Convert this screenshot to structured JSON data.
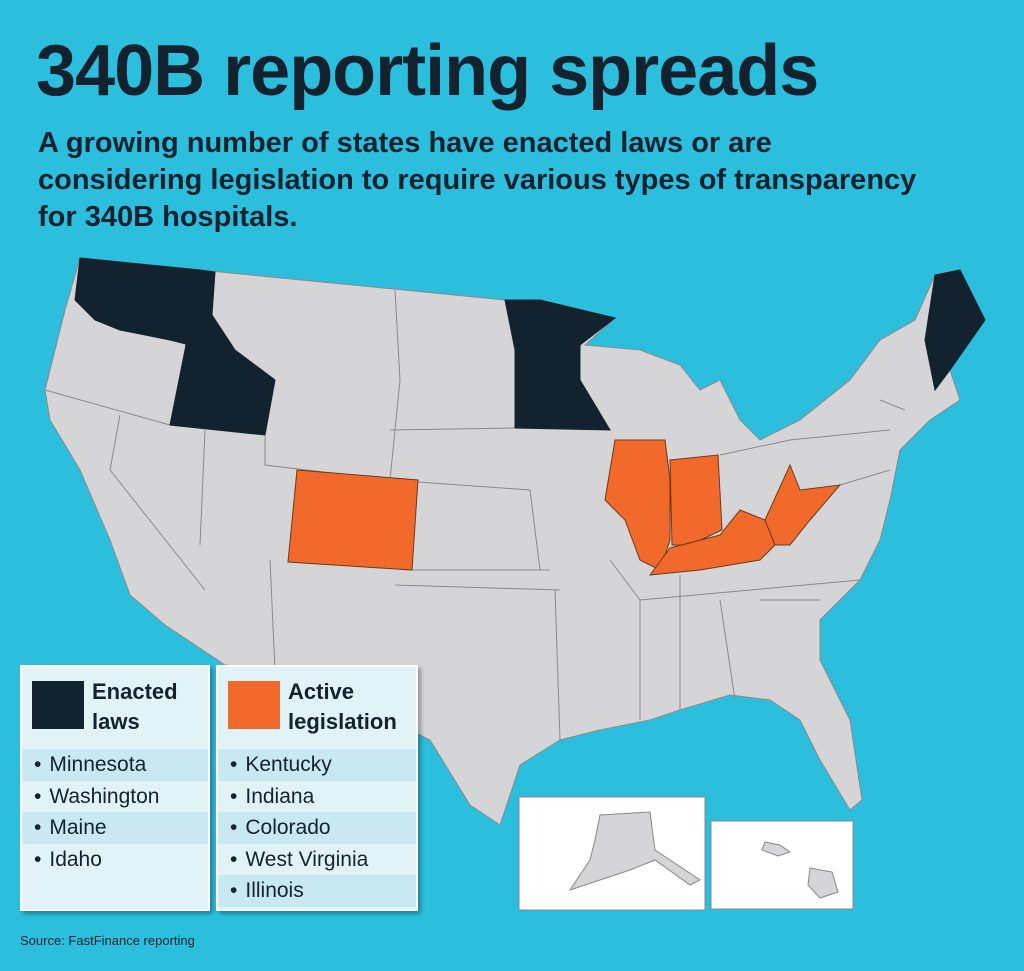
{
  "title": "340B reporting spreads",
  "subtitle": "A growing number of states have enacted laws or are considering legislation to require various types of transparency for 340B hospitals.",
  "legend": [
    {
      "label": "Enacted laws",
      "color": "#13222f",
      "states": [
        "Minnesota",
        "Washington",
        "Maine",
        "Idaho"
      ]
    },
    {
      "label": "Active legislation",
      "color": "#f26a2b",
      "states": [
        "Kentucky",
        "Indiana",
        "Colorado",
        "West Virginia",
        "Illinois"
      ]
    }
  ],
  "source": "Source: FastFinance reporting"
}
